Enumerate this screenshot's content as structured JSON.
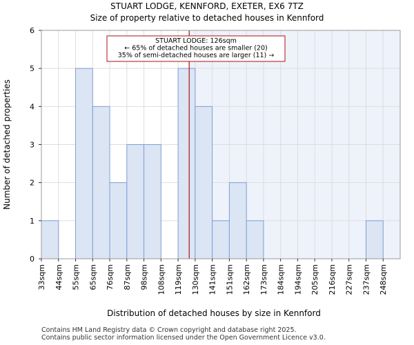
{
  "title_line1": "STUART LODGE, KENNFORD, EXETER, EX6 7TZ",
  "title_line2": "Size of property relative to detached houses in Kennford",
  "footer_line1": "Contains HM Land Registry data © Crown copyright and database right 2025.",
  "footer_line2": "Contains public sector information licensed under the Open Government Licence v3.0.",
  "colors": {
    "bar_fill": "#dbe5f4",
    "bar_stroke": "#7f9fd4",
    "shade": "#eef2fb",
    "marker": "#aa1111",
    "grid": "#dddddd"
  },
  "chart_data": {
    "type": "bar",
    "title": "Size of property relative to detached houses in Kennford",
    "xlabel": "Distribution of detached houses by size in Kennford",
    "ylabel": "Number of detached properties",
    "ylim": [
      0,
      6
    ],
    "yticks": [
      0,
      1,
      2,
      3,
      4,
      5,
      6
    ],
    "grid": true,
    "categories": [
      "33sqm",
      "44sqm",
      "55sqm",
      "65sqm",
      "76sqm",
      "87sqm",
      "98sqm",
      "108sqm",
      "119sqm",
      "130sqm",
      "141sqm",
      "151sqm",
      "162sqm",
      "173sqm",
      "184sqm",
      "194sqm",
      "205sqm",
      "216sqm",
      "227sqm",
      "237sqm",
      "248sqm"
    ],
    "values": [
      1,
      0,
      5,
      4,
      2,
      3,
      3,
      0,
      5,
      4,
      1,
      2,
      1,
      0,
      0,
      0,
      0,
      0,
      0,
      1,
      0
    ],
    "marker_value": 126,
    "marker_bin_position": 8.65,
    "annotation": {
      "line1": "STUART LODGE: 126sqm",
      "line2": "← 65% of detached houses are smaller (20)",
      "line3": "35% of semi-detached houses are larger (11) →"
    }
  }
}
